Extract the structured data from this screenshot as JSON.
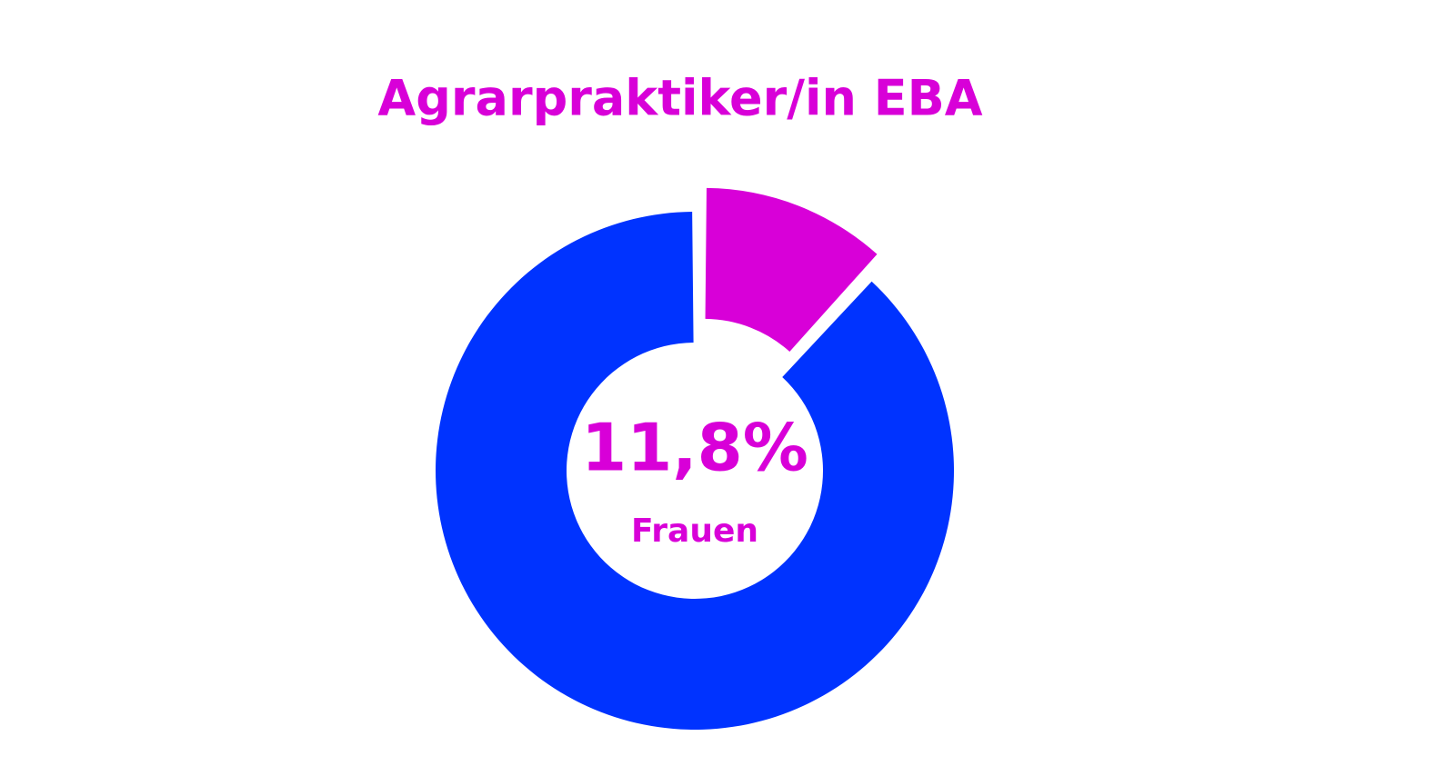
{
  "chart_data": {
    "type": "pie",
    "title": "Agrarpraktiker/in EBA",
    "categories": [
      "Frauen",
      null
    ],
    "values": [
      11.8,
      88.2
    ],
    "value_labels": [
      "11,8%",
      null
    ],
    "colors": [
      "#d800d8",
      "#0033ff"
    ],
    "donut": true,
    "explode": [
      true,
      false
    ]
  }
}
